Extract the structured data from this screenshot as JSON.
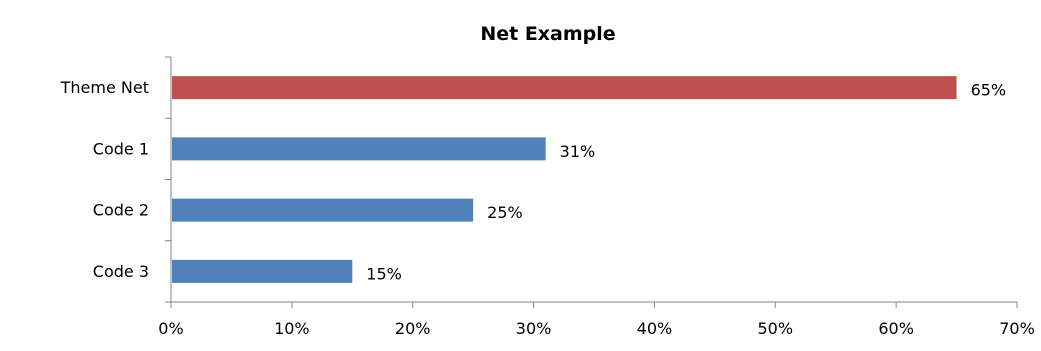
{
  "chart_data": {
    "type": "bar",
    "orientation": "horizontal",
    "title": "Net Example",
    "xlabel": "",
    "ylabel": "",
    "categories": [
      "Theme Net",
      "Code 1",
      "Code 2",
      "Code 3"
    ],
    "values": [
      65,
      31,
      25,
      15
    ],
    "data_labels": [
      "65%",
      "31%",
      "25%",
      "15%"
    ],
    "xlim": [
      0,
      70
    ],
    "x_ticks": [
      0,
      10,
      20,
      30,
      40,
      50,
      60,
      70
    ],
    "x_tick_labels": [
      "0%",
      "10%",
      "20%",
      "30%",
      "40%",
      "50%",
      "60%",
      "70%"
    ],
    "bar_colors": [
      "#C0504D",
      "#4F81BD",
      "#4F81BD",
      "#4F81BD"
    ],
    "grid": false,
    "legend": "none"
  }
}
